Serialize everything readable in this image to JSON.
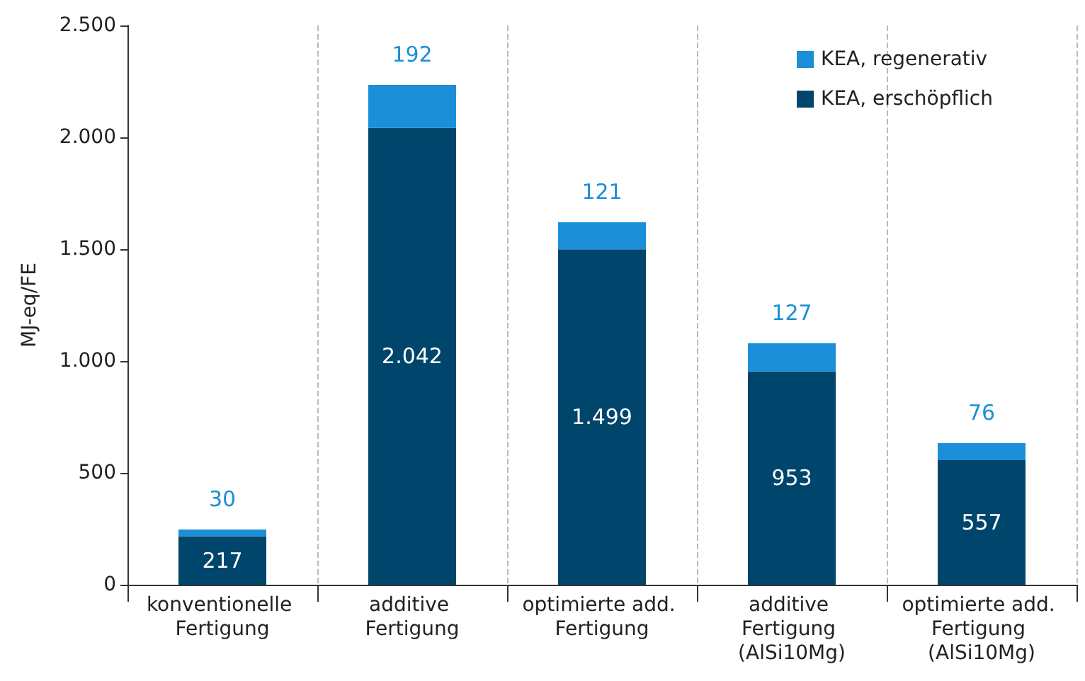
{
  "chart_data": {
    "type": "bar",
    "stacked": true,
    "ylabel": "MJ-eq/FE",
    "categories": [
      "konventionelle Fertigung",
      "additive Fertigung",
      "optimierte add. Fertigung",
      "additive Fertigung (AlSi10Mg)",
      "optimierte add. Fertigung (AlSi10Mg)"
    ],
    "series": [
      {
        "name": "KEA, erschöpflich",
        "color": "#00456b",
        "values": [
          217,
          2042,
          1499,
          953,
          557
        ],
        "value_labels": [
          "217",
          "2.042",
          "1.499",
          "953",
          "557"
        ]
      },
      {
        "name": "KEA, regenerativ",
        "color": "#1b8fd8",
        "values": [
          30,
          192,
          121,
          127,
          76
        ],
        "value_labels": [
          "30",
          "192",
          "121",
          "127",
          "76"
        ]
      }
    ],
    "ylim": [
      0,
      2500
    ],
    "yticks": [
      {
        "value": 0,
        "label": "0"
      },
      {
        "value": 500,
        "label": "500"
      },
      {
        "value": 1000,
        "label": "1.000"
      },
      {
        "value": 1500,
        "label": "1.500"
      },
      {
        "value": 2000,
        "label": "2.000"
      },
      {
        "value": 2500,
        "label": "2.500"
      }
    ],
    "grid": "x",
    "legend": "top right"
  }
}
